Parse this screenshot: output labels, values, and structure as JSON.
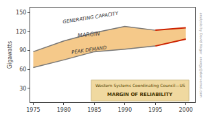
{
  "chart_data": {
    "type": "line",
    "ylabel": "Gigawatts",
    "x": [
      1975,
      1980,
      1985,
      1990,
      1995,
      2000
    ],
    "series": [
      {
        "type": "area",
        "color": "#f5c98a",
        "values": [
          88,
          105,
          118,
          128,
          122,
          126
        ]
      },
      {
        "type": "area",
        "color": "#f5c98a",
        "values": [
          63,
          75,
          88,
          92,
          97,
          108
        ]
      },
      {
        "type": "line",
        "color": "#777777",
        "values": [
          88,
          105,
          118,
          128,
          122,
          null
        ]
      },
      {
        "type": "line",
        "color": "#777777",
        "values": [
          63,
          75,
          88,
          92,
          97,
          null
        ]
      },
      {
        "type": "line",
        "color": "#cc2200",
        "values": [
          null,
          null,
          null,
          null,
          122,
          126
        ]
      },
      {
        "type": "line",
        "color": "#cc2200",
        "values": [
          null,
          null,
          null,
          null,
          97,
          108
        ]
      }
    ],
    "xlim": [
      1974.5,
      2001.5
    ],
    "xticks": [
      1975,
      1980,
      1985,
      1990,
      1995,
      2000
    ],
    "ylim": [
      8,
      158
    ],
    "yticks": [
      30,
      60,
      90,
      120,
      150
    ],
    "grid": false,
    "annotations": [
      "GENERATING CAPACITY",
      "MARGIN",
      "PEAK DEMAND",
      "Western Systems Coordinating Council—US",
      "MARGIN OF RELIABILITY",
      "analysis by David Hager  energy@denvernel.com"
    ]
  }
}
